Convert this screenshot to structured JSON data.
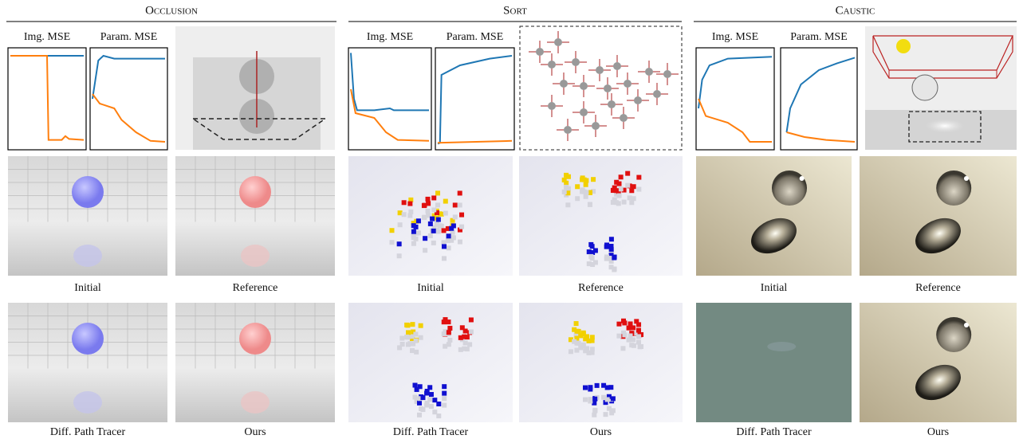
{
  "sections": [
    {
      "title": "Occlusion",
      "plots": [
        "Img. MSE",
        "Param. MSE"
      ],
      "images": [
        "Initial",
        "Reference",
        "Diff. Path Tracer",
        "Ours"
      ]
    },
    {
      "title": "Sort",
      "plots": [
        "Img. MSE",
        "Param. MSE"
      ],
      "images": [
        "Initial",
        "Reference",
        "Diff. Path Tracer",
        "Ours"
      ]
    },
    {
      "title": "Caustic",
      "plots": [
        "Img. MSE",
        "Param. MSE"
      ],
      "images": [
        "Initial",
        "Reference",
        "Diff. Path Tracer",
        "Ours"
      ]
    }
  ]
}
